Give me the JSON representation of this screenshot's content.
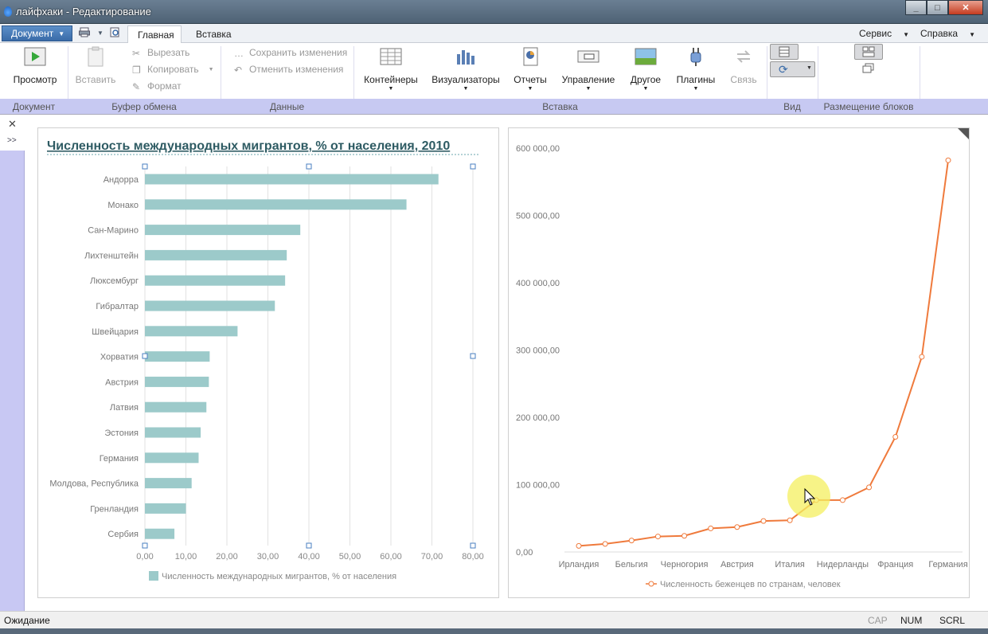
{
  "window": {
    "title": "лайфхаки - Редактирование",
    "minimize": "_",
    "maximize": "□",
    "close": "✕"
  },
  "menu": {
    "document_button": "Документ",
    "tabs": [
      "Главная",
      "Вставка"
    ],
    "right": [
      "Сервис",
      "Справка"
    ]
  },
  "ribbon": {
    "preview": "Просмотр",
    "paste": "Вставить",
    "cut": "Вырезать",
    "copy": "Копировать",
    "format": "Формат",
    "save_changes": "Сохранить изменения",
    "undo_changes": "Отменить изменения",
    "containers": "Контейнеры",
    "visualizers": "Визуализаторы",
    "reports": "Отчеты",
    "management": "Управление",
    "other": "Другое",
    "plugins": "Плагины",
    "link": "Связь",
    "groups": [
      "Документ",
      "Буфер обмена",
      "Данные",
      "Вставка",
      "Вид",
      "Размещение блоков"
    ]
  },
  "left_panel": {
    "close": "✕",
    "expand": ">>"
  },
  "chart_data": [
    {
      "type": "bar",
      "orientation": "horizontal",
      "title": "Численность международных мигрантов, % от населения, 2010",
      "categories": [
        "Андорра",
        "Монако",
        "Сан-Марино",
        "Лихтенштейн",
        "Люксембург",
        "Гибралтар",
        "Швейцария",
        "Хорватия",
        "Австрия",
        "Латвия",
        "Эстония",
        "Германия",
        "Молдова, Республика",
        "Гренландия",
        "Сербия"
      ],
      "series": [
        {
          "name": "Численность международных мигрантов, % от населения",
          "values": [
            71.6,
            63.8,
            37.9,
            34.6,
            34.2,
            31.7,
            22.6,
            15.8,
            15.6,
            15.0,
            13.6,
            13.1,
            11.4,
            10.0,
            7.2
          ]
        }
      ],
      "xlim": [
        0,
        80
      ],
      "ticks": [
        "0,00",
        "10,00",
        "20,00",
        "30,00",
        "40,00",
        "50,00",
        "60,00",
        "70,00",
        "80,00"
      ],
      "grid": true,
      "legend": "bottom",
      "color": "#9ccaca"
    },
    {
      "type": "line",
      "x": [
        "Ирландия",
        "",
        "Бельгия",
        "",
        "Черногория",
        "",
        "Австрия",
        "",
        "Италия",
        "",
        "Нидерланды",
        "",
        "Франция",
        "",
        "Германия"
      ],
      "x_tick_labels": [
        "Ирландия",
        "Бельгия",
        "Черногория",
        "Австрия",
        "Италия",
        "Нидерланды",
        "Франция",
        "Германия"
      ],
      "series": [
        {
          "name": "Численность беженцев по странам, человек",
          "values": [
            9000,
            12000,
            17000,
            23000,
            24000,
            35000,
            37000,
            46000,
            47000,
            77000,
            77000,
            96000,
            171000,
            290000,
            582000
          ]
        }
      ],
      "ylim": [
        0,
        600000
      ],
      "y_ticks": [
        "0,00",
        "100 000,00",
        "200 000,00",
        "300 000,00",
        "400 000,00",
        "500 000,00",
        "600 000,00"
      ],
      "legend": "bottom",
      "color": "#ef7a3c"
    }
  ],
  "status": {
    "text": "Ожидание",
    "indicators": [
      "CAP",
      "NUM",
      "SCRL"
    ]
  }
}
